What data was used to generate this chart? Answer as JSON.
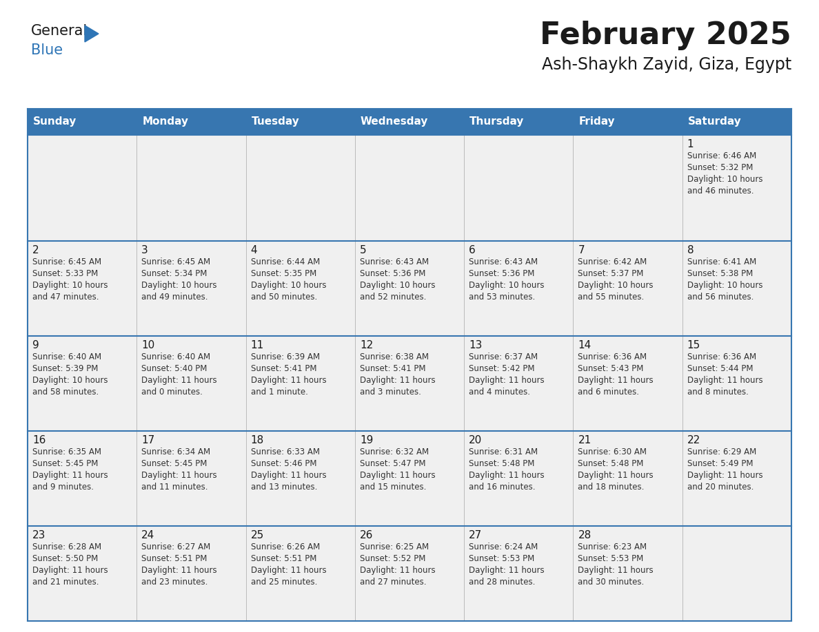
{
  "title": "February 2025",
  "subtitle": "Ash-Shaykh Zayid, Giza, Egypt",
  "header_color": "#3776b0",
  "header_text_color": "#FFFFFF",
  "cell_bg_color": "#F0F0F0",
  "border_color": "#3776b0",
  "title_color": "#1a1a1a",
  "day_number_color": "#1a1a1a",
  "info_text_color": "#333333",
  "days_of_week": [
    "Sunday",
    "Monday",
    "Tuesday",
    "Wednesday",
    "Thursday",
    "Friday",
    "Saturday"
  ],
  "calendar_data": [
    [
      {
        "day": null,
        "info": ""
      },
      {
        "day": null,
        "info": ""
      },
      {
        "day": null,
        "info": ""
      },
      {
        "day": null,
        "info": ""
      },
      {
        "day": null,
        "info": ""
      },
      {
        "day": null,
        "info": ""
      },
      {
        "day": 1,
        "info": "Sunrise: 6:46 AM\nSunset: 5:32 PM\nDaylight: 10 hours\nand 46 minutes."
      }
    ],
    [
      {
        "day": 2,
        "info": "Sunrise: 6:45 AM\nSunset: 5:33 PM\nDaylight: 10 hours\nand 47 minutes."
      },
      {
        "day": 3,
        "info": "Sunrise: 6:45 AM\nSunset: 5:34 PM\nDaylight: 10 hours\nand 49 minutes."
      },
      {
        "day": 4,
        "info": "Sunrise: 6:44 AM\nSunset: 5:35 PM\nDaylight: 10 hours\nand 50 minutes."
      },
      {
        "day": 5,
        "info": "Sunrise: 6:43 AM\nSunset: 5:36 PM\nDaylight: 10 hours\nand 52 minutes."
      },
      {
        "day": 6,
        "info": "Sunrise: 6:43 AM\nSunset: 5:36 PM\nDaylight: 10 hours\nand 53 minutes."
      },
      {
        "day": 7,
        "info": "Sunrise: 6:42 AM\nSunset: 5:37 PM\nDaylight: 10 hours\nand 55 minutes."
      },
      {
        "day": 8,
        "info": "Sunrise: 6:41 AM\nSunset: 5:38 PM\nDaylight: 10 hours\nand 56 minutes."
      }
    ],
    [
      {
        "day": 9,
        "info": "Sunrise: 6:40 AM\nSunset: 5:39 PM\nDaylight: 10 hours\nand 58 minutes."
      },
      {
        "day": 10,
        "info": "Sunrise: 6:40 AM\nSunset: 5:40 PM\nDaylight: 11 hours\nand 0 minutes."
      },
      {
        "day": 11,
        "info": "Sunrise: 6:39 AM\nSunset: 5:41 PM\nDaylight: 11 hours\nand 1 minute."
      },
      {
        "day": 12,
        "info": "Sunrise: 6:38 AM\nSunset: 5:41 PM\nDaylight: 11 hours\nand 3 minutes."
      },
      {
        "day": 13,
        "info": "Sunrise: 6:37 AM\nSunset: 5:42 PM\nDaylight: 11 hours\nand 4 minutes."
      },
      {
        "day": 14,
        "info": "Sunrise: 6:36 AM\nSunset: 5:43 PM\nDaylight: 11 hours\nand 6 minutes."
      },
      {
        "day": 15,
        "info": "Sunrise: 6:36 AM\nSunset: 5:44 PM\nDaylight: 11 hours\nand 8 minutes."
      }
    ],
    [
      {
        "day": 16,
        "info": "Sunrise: 6:35 AM\nSunset: 5:45 PM\nDaylight: 11 hours\nand 9 minutes."
      },
      {
        "day": 17,
        "info": "Sunrise: 6:34 AM\nSunset: 5:45 PM\nDaylight: 11 hours\nand 11 minutes."
      },
      {
        "day": 18,
        "info": "Sunrise: 6:33 AM\nSunset: 5:46 PM\nDaylight: 11 hours\nand 13 minutes."
      },
      {
        "day": 19,
        "info": "Sunrise: 6:32 AM\nSunset: 5:47 PM\nDaylight: 11 hours\nand 15 minutes."
      },
      {
        "day": 20,
        "info": "Sunrise: 6:31 AM\nSunset: 5:48 PM\nDaylight: 11 hours\nand 16 minutes."
      },
      {
        "day": 21,
        "info": "Sunrise: 6:30 AM\nSunset: 5:48 PM\nDaylight: 11 hours\nand 18 minutes."
      },
      {
        "day": 22,
        "info": "Sunrise: 6:29 AM\nSunset: 5:49 PM\nDaylight: 11 hours\nand 20 minutes."
      }
    ],
    [
      {
        "day": 23,
        "info": "Sunrise: 6:28 AM\nSunset: 5:50 PM\nDaylight: 11 hours\nand 21 minutes."
      },
      {
        "day": 24,
        "info": "Sunrise: 6:27 AM\nSunset: 5:51 PM\nDaylight: 11 hours\nand 23 minutes."
      },
      {
        "day": 25,
        "info": "Sunrise: 6:26 AM\nSunset: 5:51 PM\nDaylight: 11 hours\nand 25 minutes."
      },
      {
        "day": 26,
        "info": "Sunrise: 6:25 AM\nSunset: 5:52 PM\nDaylight: 11 hours\nand 27 minutes."
      },
      {
        "day": 27,
        "info": "Sunrise: 6:24 AM\nSunset: 5:53 PM\nDaylight: 11 hours\nand 28 minutes."
      },
      {
        "day": 28,
        "info": "Sunrise: 6:23 AM\nSunset: 5:53 PM\nDaylight: 11 hours\nand 30 minutes."
      },
      {
        "day": null,
        "info": ""
      }
    ]
  ],
  "logo_triangle_color": "#2e75b6"
}
